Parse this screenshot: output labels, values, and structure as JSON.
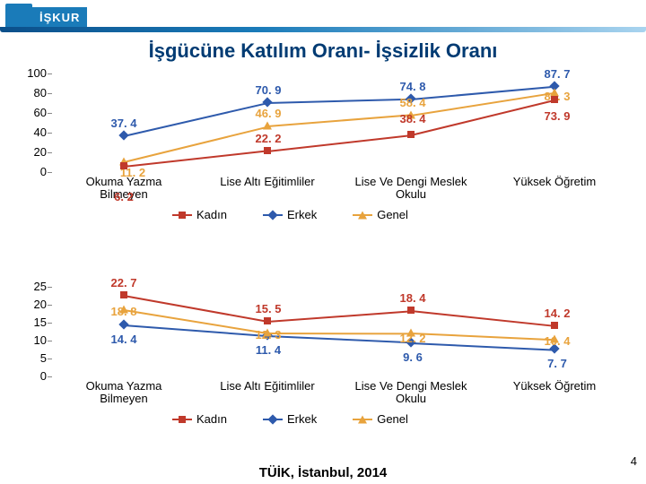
{
  "logo_text": "İŞKUR",
  "title": "İşgücüne Katılım Oranı- İşsizlik Oranı",
  "bottom_note": "TÜİK, İstanbul, 2014",
  "page_number": "4",
  "categories": [
    "Okuma Yazma\nBilmeyen",
    "Lise Altı Eğitimliler",
    "Lise Ve Dengi Meslek\nOkulu",
    "Yüksek Öğretim"
  ],
  "series_colors": {
    "kadin": "#c0392b",
    "erkek": "#2e5aac",
    "genel": "#e8a33d"
  },
  "marker_shapes": {
    "kadin": "square",
    "erkek": "diamond",
    "genel": "triangle"
  },
  "legend_labels": {
    "kadin": "Kadın",
    "erkek": "Erkek",
    "genel": "Genel"
  },
  "chart1": {
    "ymin": 0,
    "ymax": 100,
    "ytick_step": 20,
    "label_positions": {
      "kadin": [
        [
          0,
          42
        ],
        [
          1,
          -6
        ],
        [
          2,
          -10
        ],
        [
          3,
          26
        ]
      ],
      "erkek": [
        [
          0,
          -6
        ],
        [
          1,
          -6
        ],
        [
          2,
          -6
        ],
        [
          3,
          -6
        ]
      ],
      "genel": [
        [
          10,
          20
        ],
        [
          1,
          -6
        ],
        [
          2,
          -6
        ],
        [
          3,
          12
        ]
      ]
    },
    "data": {
      "kadin": [
        6.2,
        22.2,
        38.4,
        73.9
      ],
      "erkek": [
        37.4,
        70.9,
        74.8,
        87.7
      ],
      "genel": [
        11.2,
        46.9,
        58.4,
        81.3
      ]
    }
  },
  "chart2": {
    "ymin": 0,
    "ymax": 25,
    "ytick_step": 5,
    "label_positions": {
      "kadin": [
        [
          0,
          -6
        ],
        [
          1,
          -6
        ],
        [
          2,
          -6
        ],
        [
          3,
          -6
        ]
      ],
      "erkek": [
        [
          0,
          24
        ],
        [
          1,
          24
        ],
        [
          2,
          24
        ],
        [
          3,
          24
        ]
      ],
      "genel": [
        [
          0,
          10
        ],
        [
          1,
          10
        ],
        [
          2,
          14
        ],
        [
          3,
          10
        ]
      ]
    },
    "data": {
      "kadin": [
        22.7,
        15.5,
        18.4,
        14.2
      ],
      "erkek": [
        14.4,
        11.4,
        9.6,
        7.7
      ],
      "genel": [
        18.8,
        12.3,
        12.2,
        10.4
      ]
    }
  }
}
